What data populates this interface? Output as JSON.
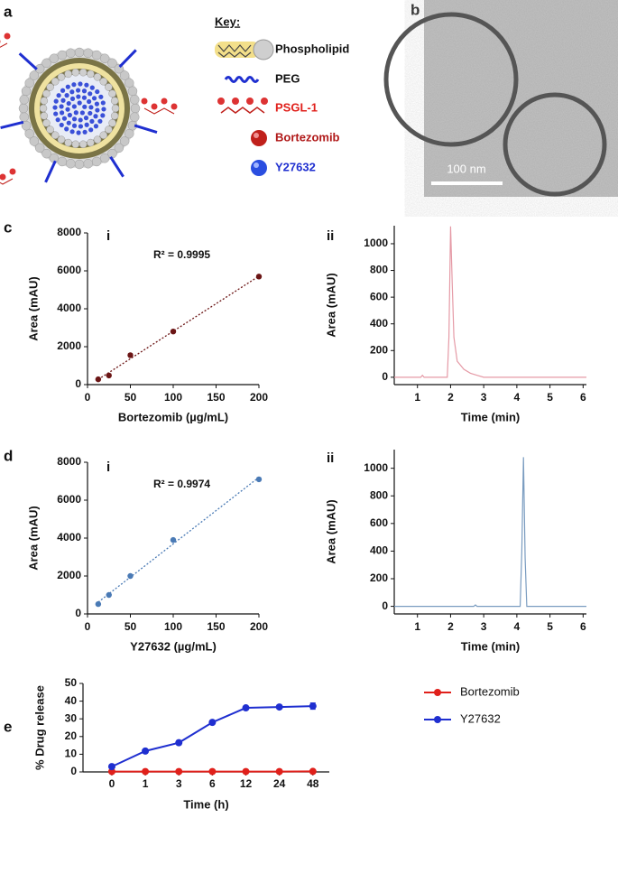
{
  "panel_labels": [
    "a",
    "b",
    "c",
    "d",
    "e"
  ],
  "key": {
    "title": "Key:",
    "items": [
      {
        "label": "Phospholipid",
        "color": "#111111"
      },
      {
        "label": "PEG",
        "color": "#111111"
      },
      {
        "label": "PSGL-1",
        "color": "#e0201b"
      },
      {
        "label": "Bortezomib",
        "color": "#b01818"
      },
      {
        "label": "Y27632",
        "color": "#1f2fd0"
      }
    ]
  },
  "scale_bar": "100 nm",
  "chart_data": [
    {
      "type": "scatter",
      "label": "i",
      "annotation": "R² = 0.9995",
      "trendline": true,
      "x": [
        12.5,
        25,
        50,
        100,
        200
      ],
      "values": [
        280,
        480,
        1550,
        2800,
        5700
      ],
      "color": "#6b1515",
      "xlim": [
        0,
        200
      ],
      "xticks": [
        0,
        50,
        100,
        150,
        200
      ],
      "ylim": [
        0,
        8000
      ],
      "yticks": [
        0,
        2000,
        4000,
        6000,
        8000
      ],
      "x_label": "Bortezomib (µg/mL)",
      "y_label": "Area (mAU)"
    },
    {
      "type": "line",
      "label": "ii",
      "color": "#e59aa6",
      "x": [
        0.3,
        1.1,
        1.15,
        1.2,
        1.9,
        1.95,
        2.0,
        2.05,
        2.1,
        2.2,
        2.4,
        2.6,
        2.8,
        3.0,
        6.1
      ],
      "values": [
        0,
        0,
        15,
        0,
        0,
        300,
        1130,
        700,
        300,
        120,
        60,
        30,
        15,
        0,
        0
      ],
      "xlim": [
        0.3,
        6.1
      ],
      "xticks": [
        1,
        2,
        3,
        4,
        5,
        6
      ],
      "ylim": [
        -55,
        1135
      ],
      "yticks": [
        0,
        200,
        400,
        600,
        800,
        1000
      ],
      "x_label": "Time (min)",
      "y_label": "Area (mAU)"
    },
    {
      "type": "scatter",
      "label": "i",
      "annotation": "R² = 0.9974",
      "trendline": true,
      "x": [
        12.5,
        25,
        50,
        100,
        200
      ],
      "values": [
        520,
        1000,
        2000,
        3900,
        7100
      ],
      "color": "#4a7ab5",
      "xlim": [
        0,
        200
      ],
      "xticks": [
        0,
        50,
        100,
        150,
        200
      ],
      "ylim": [
        0,
        8000
      ],
      "yticks": [
        0,
        2000,
        4000,
        6000,
        8000
      ],
      "x_label": "Y27632 (µg/mL)",
      "y_label": "Area (mAU)"
    },
    {
      "type": "line",
      "label": "ii",
      "color": "#7a9cc0",
      "x": [
        0.3,
        2.7,
        2.75,
        2.8,
        4.1,
        4.15,
        4.2,
        4.25,
        4.3,
        6.1
      ],
      "values": [
        0,
        0,
        10,
        0,
        0,
        400,
        1080,
        350,
        0,
        0
      ],
      "xlim": [
        0.3,
        6.1
      ],
      "xticks": [
        1,
        2,
        3,
        4,
        5,
        6
      ],
      "ylim": [
        -55,
        1135
      ],
      "yticks": [
        0,
        200,
        400,
        600,
        800,
        1000
      ],
      "x_label": "Time (min)",
      "y_label": "Area (mAU)"
    },
    {
      "type": "line",
      "categories": [
        "0",
        "1",
        "3",
        "6",
        "12",
        "24",
        "48"
      ],
      "series": [
        {
          "name": "Bortezomib",
          "color": "#e0201b",
          "values": [
            0.2,
            0.2,
            0.2,
            0.2,
            0.2,
            0.2,
            0.3
          ],
          "errors": [
            0.1,
            0.1,
            0.1,
            0.1,
            0.1,
            0.1,
            0.2
          ]
        },
        {
          "name": "Y27632",
          "color": "#1f2fd0",
          "values": [
            3,
            11.8,
            16.5,
            28,
            36.2,
            36.7,
            37.2
          ],
          "errors": [
            0.3,
            0.5,
            1.2,
            0.6,
            0.5,
            0.9,
            1.8
          ]
        }
      ],
      "ylim": [
        0,
        50
      ],
      "yticks": [
        0,
        10,
        20,
        30,
        40,
        50
      ],
      "x_label": "Time (h)",
      "y_label": "% Drug release",
      "legend": "right"
    }
  ]
}
